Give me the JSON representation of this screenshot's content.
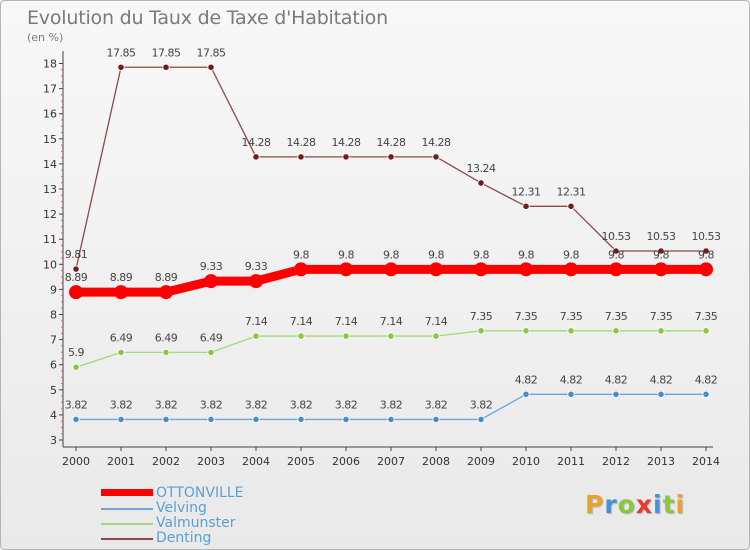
{
  "title": "Evolution du Taux de Taxe d'Habitation",
  "subtitle": "(en %)",
  "logo": {
    "text": "Proxiti",
    "letters": [
      {
        "ch": "P",
        "color": "#e8a32a"
      },
      {
        "ch": "r",
        "color": "#4a8fd6"
      },
      {
        "ch": "o",
        "color": "#8cc63f"
      },
      {
        "ch": "x",
        "color": "#e83a2a"
      },
      {
        "ch": "i",
        "color": "#4a8fd6"
      },
      {
        "ch": "t",
        "color": "#8cc63f"
      },
      {
        "ch": "i",
        "color": "#e8a32a"
      }
    ]
  },
  "chart_data": {
    "type": "line",
    "x": [
      "2000",
      "2001",
      "2002",
      "2003",
      "2004",
      "2005",
      "2006",
      "2007",
      "2008",
      "2009",
      "2010",
      "2011",
      "2012",
      "2013",
      "2014"
    ],
    "y_ticks": [
      3,
      4,
      5,
      6,
      7,
      8,
      9,
      10,
      11,
      12,
      13,
      14,
      15,
      16,
      17,
      18
    ],
    "ylim": [
      3,
      18
    ],
    "grid": false,
    "legend_position": "bottom-left",
    "series": [
      {
        "name": "OTTONVILLE",
        "color": "#ff0000",
        "marker_color": "#ff0000",
        "emphasis": true,
        "values": [
          8.89,
          8.89,
          8.89,
          9.33,
          9.33,
          9.8,
          9.8,
          9.8,
          9.8,
          9.8,
          9.8,
          9.8,
          9.8,
          9.8,
          9.8
        ],
        "labels": [
          "8.89",
          "8.89",
          "8.89",
          "9.33",
          "9.33",
          "9.8",
          "9.8",
          "9.8",
          "9.8",
          "9.8",
          "9.8",
          "9.8",
          "9.8",
          "9.8",
          "9.8"
        ]
      },
      {
        "name": "Velving",
        "color": "#6ea5d4",
        "marker_color": "#4a8cc8",
        "emphasis": false,
        "values": [
          3.82,
          3.82,
          3.82,
          3.82,
          3.82,
          3.82,
          3.82,
          3.82,
          3.82,
          3.82,
          4.82,
          4.82,
          4.82,
          4.82,
          4.82
        ],
        "labels": [
          "3.82",
          "3.82",
          "3.82",
          "3.82",
          "3.82",
          "3.82",
          "3.82",
          "3.82",
          "3.82",
          "3.82",
          "4.82",
          "4.82",
          "4.82",
          "4.82",
          "4.82"
        ]
      },
      {
        "name": "Valmunster",
        "color": "#a6d77a",
        "marker_color": "#8cc63f",
        "emphasis": false,
        "values": [
          5.9,
          6.49,
          6.49,
          6.49,
          7.14,
          7.14,
          7.14,
          7.14,
          7.14,
          7.35,
          7.35,
          7.35,
          7.35,
          7.35,
          7.35
        ],
        "labels": [
          "5.9",
          "6.49",
          "6.49",
          "6.49",
          "7.14",
          "7.14",
          "7.14",
          "7.14",
          "7.14",
          "7.35",
          "7.35",
          "7.35",
          "7.35",
          "7.35",
          "7.35"
        ]
      },
      {
        "name": "Denting",
        "color": "#8b4a4a",
        "marker_color": "#6e1e1e",
        "emphasis": false,
        "values": [
          9.81,
          17.85,
          17.85,
          17.85,
          14.28,
          14.28,
          14.28,
          14.28,
          14.28,
          13.24,
          12.31,
          12.31,
          10.53,
          10.53,
          10.53
        ],
        "labels": [
          "9.81",
          "17.85",
          "17.85",
          "17.85",
          "14.28",
          "14.28",
          "14.28",
          "14.28",
          "14.28",
          "13.24",
          "12.31",
          "12.31",
          "10.53",
          "10.53",
          "10.53"
        ]
      }
    ]
  }
}
